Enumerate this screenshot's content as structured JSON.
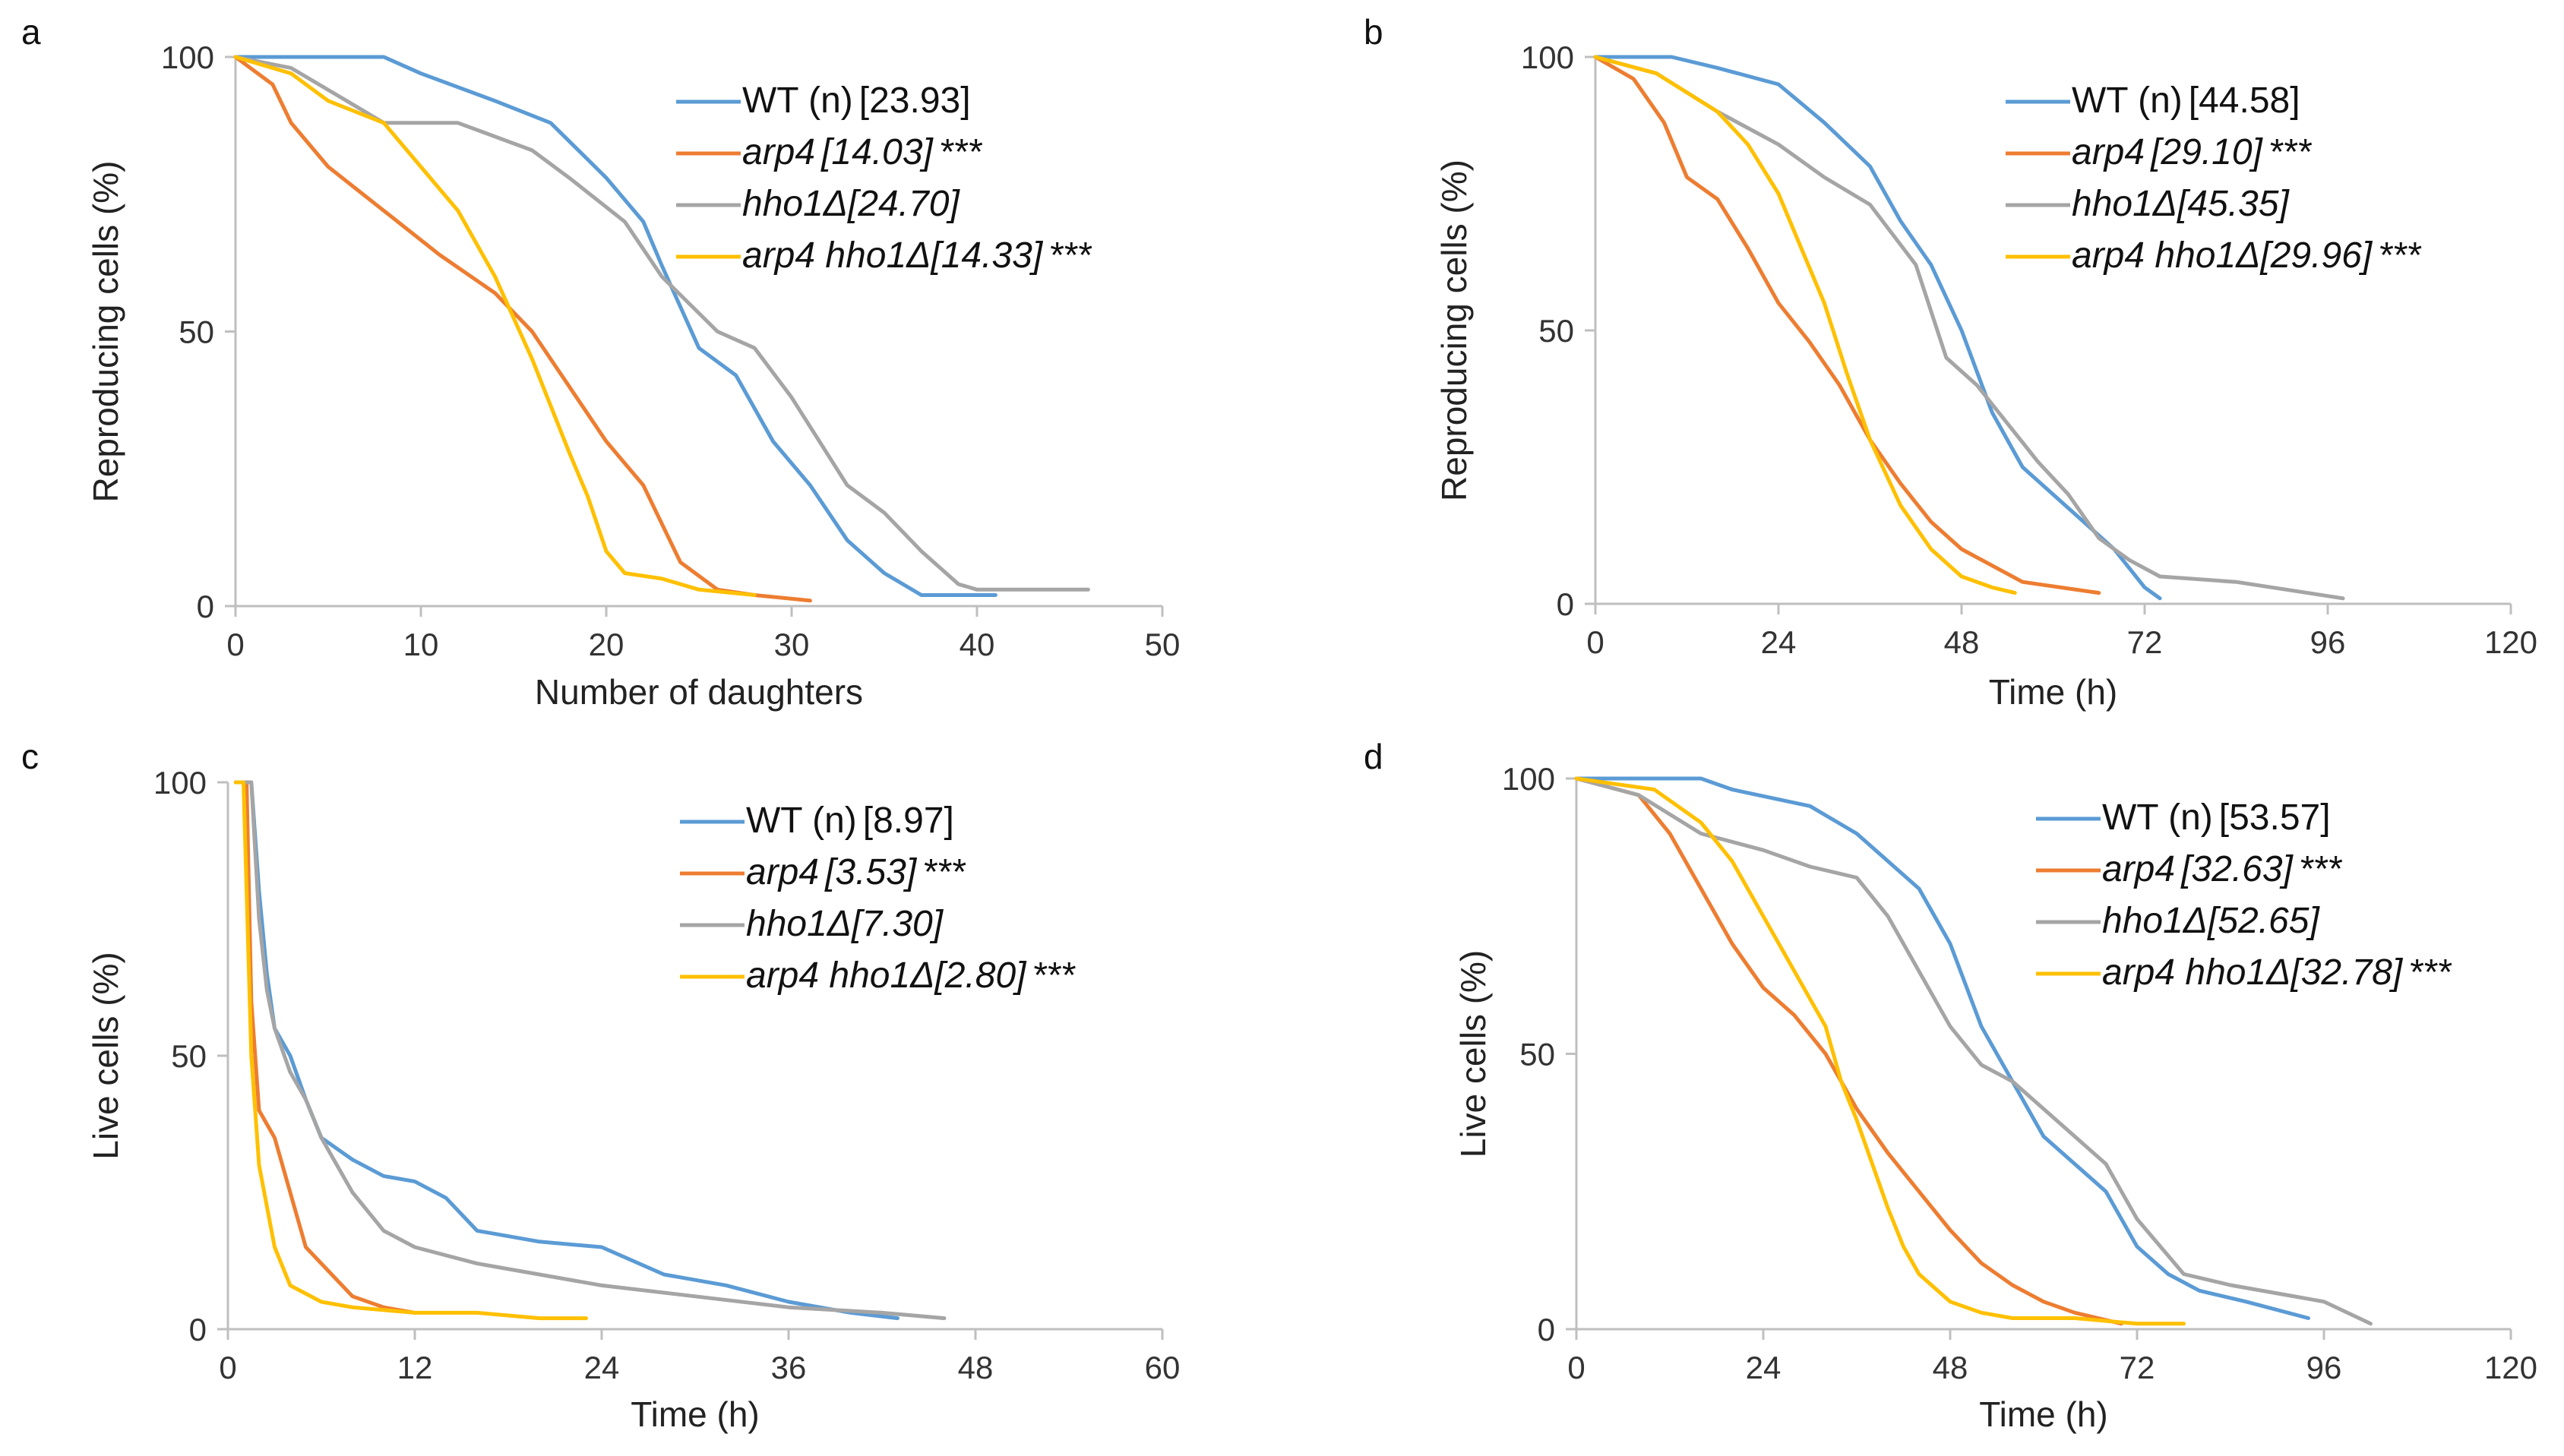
{
  "colors": {
    "wt": "#5b9bd5",
    "arp4": "#ed7d31",
    "hho1": "#a5a5a5",
    "double": "#ffc000"
  },
  "chart_data": [
    {
      "panel": "a",
      "type": "line",
      "xlabel": "Number of daughters",
      "ylabel": "Reproducing cells (%)",
      "xlim": [
        0,
        50
      ],
      "ylim": [
        0,
        100
      ],
      "xticks": [
        0,
        10,
        20,
        30,
        40,
        50
      ],
      "yticks": [
        0,
        50,
        100
      ],
      "series": [
        {
          "key": "wt",
          "name": "WT (n)",
          "value": "[23.93]",
          "stars": "",
          "italic": false,
          "x": [
            0,
            3,
            8,
            10,
            14,
            17,
            20,
            22,
            23,
            25,
            27,
            29,
            31,
            33,
            35,
            37,
            38,
            41
          ],
          "y": [
            100,
            100,
            100,
            97,
            92,
            88,
            78,
            70,
            62,
            47,
            42,
            30,
            22,
            12,
            6,
            2,
            2,
            2
          ]
        },
        {
          "key": "arp4",
          "name": "arp4",
          "value": "[14.03]",
          "stars": "***",
          "italic": true,
          "x": [
            0,
            2,
            3,
            5,
            8,
            11,
            14,
            16,
            18,
            20,
            22,
            24,
            26,
            28,
            31
          ],
          "y": [
            100,
            95,
            88,
            80,
            72,
            64,
            57,
            50,
            40,
            30,
            22,
            8,
            3,
            2,
            1
          ]
        },
        {
          "key": "hho1",
          "name": "hho1Δ",
          "value": "[24.70]",
          "stars": "",
          "italic": true,
          "x": [
            0,
            3,
            6,
            8,
            10,
            12,
            16,
            18,
            21,
            23,
            26,
            28,
            30,
            33,
            35,
            37,
            39,
            40,
            46
          ],
          "y": [
            100,
            98,
            92,
            88,
            88,
            88,
            83,
            78,
            70,
            60,
            50,
            47,
            38,
            22,
            17,
            10,
            4,
            3,
            3
          ]
        },
        {
          "key": "double",
          "name": "arp4 hho1Δ",
          "value": "[14.33]",
          "stars": "***",
          "italic": true,
          "x": [
            0,
            3,
            5,
            8,
            10,
            12,
            14,
            16,
            18,
            19,
            20,
            21,
            23,
            25,
            28
          ],
          "y": [
            100,
            97,
            92,
            88,
            80,
            72,
            60,
            45,
            28,
            20,
            10,
            6,
            5,
            3,
            2
          ]
        }
      ]
    },
    {
      "panel": "b",
      "type": "line",
      "xlabel": "Time (h)",
      "ylabel": "Reproducing cells (%)",
      "xlim": [
        0,
        120
      ],
      "ylim": [
        0,
        100
      ],
      "xticks": [
        0,
        24,
        48,
        72,
        96,
        120
      ],
      "yticks": [
        0,
        50,
        100
      ],
      "series": [
        {
          "key": "wt",
          "name": "WT (n)",
          "value": "[44.58]",
          "stars": "",
          "italic": false,
          "x": [
            0,
            10,
            16,
            24,
            30,
            36,
            40,
            44,
            48,
            52,
            56,
            60,
            64,
            68,
            72,
            74
          ],
          "y": [
            100,
            100,
            98,
            95,
            88,
            80,
            70,
            62,
            50,
            35,
            25,
            20,
            15,
            10,
            3,
            1
          ]
        },
        {
          "key": "arp4",
          "name": "arp4",
          "value": "[29.10]",
          "stars": "***",
          "italic": true,
          "x": [
            0,
            5,
            9,
            12,
            16,
            20,
            24,
            28,
            32,
            36,
            40,
            44,
            48,
            56,
            66
          ],
          "y": [
            100,
            96,
            88,
            78,
            74,
            65,
            55,
            48,
            40,
            30,
            22,
            15,
            10,
            4,
            2
          ]
        },
        {
          "key": "hho1",
          "name": "hho1Δ",
          "value": "[45.35]",
          "stars": "",
          "italic": true,
          "x": [
            0,
            8,
            16,
            24,
            30,
            36,
            42,
            46,
            50,
            54,
            58,
            62,
            66,
            70,
            74,
            84,
            98
          ],
          "y": [
            100,
            97,
            90,
            84,
            78,
            73,
            62,
            45,
            40,
            33,
            26,
            20,
            12,
            8,
            5,
            4,
            1
          ]
        },
        {
          "key": "double",
          "name": "arp4 hho1Δ",
          "value": "[29.96]",
          "stars": "***",
          "italic": true,
          "x": [
            0,
            8,
            16,
            20,
            24,
            27,
            30,
            33,
            36,
            40,
            44,
            48,
            52,
            55
          ],
          "y": [
            100,
            97,
            90,
            84,
            75,
            65,
            55,
            42,
            30,
            18,
            10,
            5,
            3,
            2
          ]
        }
      ]
    },
    {
      "panel": "c",
      "type": "line",
      "xlabel": "Time (h)",
      "ylabel": "Live cells (%)",
      "xlim": [
        0,
        60
      ],
      "ylim": [
        0,
        100
      ],
      "xticks": [
        0,
        12,
        24,
        36,
        48,
        60
      ],
      "yticks": [
        0,
        50,
        100
      ],
      "series": [
        {
          "key": "wt",
          "name": "WT (n)",
          "value": "[8.97]",
          "stars": "",
          "italic": false,
          "x": [
            0.5,
            1.5,
            2,
            2.5,
            3,
            4,
            5,
            6,
            8,
            10,
            12,
            14,
            16,
            20,
            24,
            28,
            32,
            36,
            40,
            43
          ],
          "y": [
            100,
            100,
            80,
            65,
            55,
            50,
            42,
            35,
            31,
            28,
            27,
            24,
            18,
            16,
            15,
            10,
            8,
            5,
            3,
            2
          ]
        },
        {
          "key": "arp4",
          "name": "arp4",
          "value": "[3.53]",
          "stars": "***",
          "italic": true,
          "x": [
            0.5,
            1.2,
            1.5,
            2,
            3,
            4,
            5,
            6,
            8,
            10,
            12
          ],
          "y": [
            100,
            100,
            60,
            40,
            35,
            25,
            15,
            12,
            6,
            4,
            3
          ]
        },
        {
          "key": "hho1",
          "name": "hho1Δ",
          "value": "[7.30]",
          "stars": "",
          "italic": true,
          "x": [
            0.5,
            1.5,
            2,
            2.5,
            3,
            4,
            5,
            6,
            8,
            10,
            12,
            16,
            20,
            24,
            30,
            36,
            42,
            46
          ],
          "y": [
            100,
            100,
            75,
            62,
            55,
            47,
            42,
            35,
            25,
            18,
            15,
            12,
            10,
            8,
            6,
            4,
            3,
            2
          ]
        },
        {
          "key": "double",
          "name": "arp4 hho1Δ",
          "value": "[2.80]",
          "stars": "***",
          "italic": true,
          "x": [
            0.5,
            1,
            1.5,
            2,
            3,
            4,
            6,
            8,
            12,
            16,
            20,
            23
          ],
          "y": [
            100,
            100,
            50,
            30,
            15,
            8,
            5,
            4,
            3,
            3,
            2,
            2
          ]
        }
      ]
    },
    {
      "panel": "d",
      "type": "line",
      "xlabel": "Time (h)",
      "ylabel": "Live cells (%)",
      "xlim": [
        0,
        120
      ],
      "ylim": [
        0,
        100
      ],
      "xticks": [
        0,
        24,
        48,
        72,
        96,
        120
      ],
      "yticks": [
        0,
        50,
        100
      ],
      "series": [
        {
          "key": "wt",
          "name": "WT (n)",
          "value": "[53.57]",
          "stars": "",
          "italic": false,
          "x": [
            0,
            16,
            20,
            30,
            36,
            40,
            44,
            48,
            52,
            56,
            60,
            64,
            68,
            72,
            76,
            80,
            86,
            94
          ],
          "y": [
            100,
            100,
            98,
            95,
            90,
            85,
            80,
            70,
            55,
            45,
            35,
            30,
            25,
            15,
            10,
            7,
            5,
            2
          ]
        },
        {
          "key": "arp4",
          "name": "arp4",
          "value": "[32.63]",
          "stars": "***",
          "italic": true,
          "x": [
            0,
            8,
            12,
            16,
            20,
            24,
            28,
            32,
            36,
            40,
            44,
            48,
            52,
            56,
            60,
            64,
            70
          ],
          "y": [
            100,
            97,
            90,
            80,
            70,
            62,
            57,
            50,
            40,
            32,
            25,
            18,
            12,
            8,
            5,
            3,
            1
          ]
        },
        {
          "key": "hho1",
          "name": "hho1Δ",
          "value": "[52.65]",
          "stars": "",
          "italic": true,
          "x": [
            0,
            8,
            16,
            24,
            30,
            36,
            40,
            44,
            48,
            52,
            56,
            60,
            64,
            68,
            72,
            78,
            84,
            92,
            96,
            102
          ],
          "y": [
            100,
            97,
            90,
            87,
            84,
            82,
            75,
            65,
            55,
            48,
            45,
            40,
            35,
            30,
            20,
            10,
            8,
            6,
            5,
            1
          ]
        },
        {
          "key": "double",
          "name": "arp4 hho1Δ",
          "value": "[32.78]",
          "stars": "***",
          "italic": true,
          "x": [
            0,
            10,
            16,
            20,
            24,
            28,
            32,
            34,
            36,
            38,
            40,
            42,
            44,
            48,
            52,
            56,
            64,
            72,
            78
          ],
          "y": [
            100,
            98,
            92,
            85,
            75,
            65,
            55,
            45,
            38,
            30,
            22,
            15,
            10,
            5,
            3,
            2,
            2,
            1,
            1
          ]
        }
      ]
    }
  ]
}
